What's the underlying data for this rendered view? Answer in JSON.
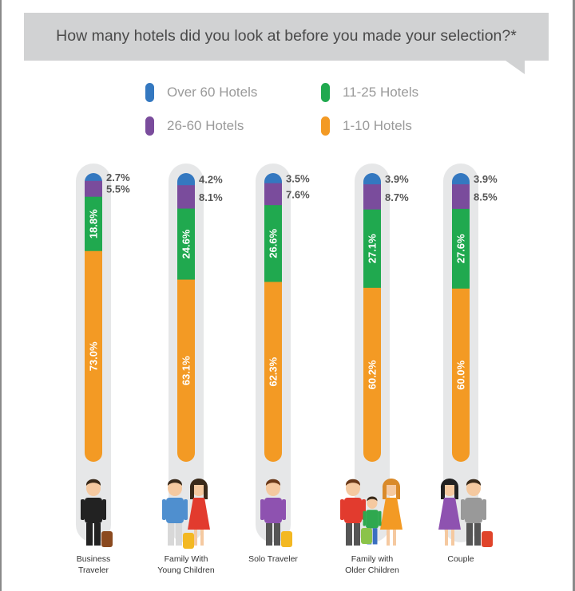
{
  "chart_data": {
    "type": "bar",
    "stacked": true,
    "orientation": "vertical",
    "title": "How many hotels did you look at before you made your selection?*",
    "categories": [
      "Business\nTraveler",
      "Family With\nYoung Children",
      "Solo Traveler",
      "Family with\nOlder Children",
      "Couple"
    ],
    "series": [
      {
        "name": "Over 60 Hotels",
        "color": "#3478c0",
        "values": [
          2.7,
          4.2,
          3.5,
          3.9,
          3.9
        ],
        "labels": [
          "2.7%",
          "4.2%",
          "3.5%",
          "3.9%",
          "3.9%"
        ]
      },
      {
        "name": "26-60 Hotels",
        "color": "#7a4c9c",
        "values": [
          5.5,
          8.1,
          7.6,
          8.7,
          8.5
        ],
        "labels": [
          "5.5%",
          "8.1%",
          "7.6%",
          "8.7%",
          "8.5%"
        ]
      },
      {
        "name": "11-25 Hotels",
        "color": "#20a94f",
        "values": [
          18.8,
          24.6,
          26.6,
          27.1,
          27.6
        ],
        "labels": [
          "18.8%",
          "24.6%",
          "26.6%",
          "27.1%",
          "27.6%"
        ]
      },
      {
        "name": "1-10 Hotels",
        "color": "#f39a24",
        "values": [
          73.0,
          63.1,
          62.3,
          60.2,
          60.0
        ],
        "labels": [
          "73.0%",
          "63.1%",
          "62.3%",
          "60.2%",
          "60.0%"
        ]
      }
    ],
    "legend_position": "top",
    "grid": false
  },
  "colors": {
    "header_bg": "#d1d2d3",
    "track": "#e6e7e8",
    "label_dark": "#555555",
    "label_light": "#ffffff"
  },
  "icons": [
    "business-traveler-icon",
    "family-young-children-icon",
    "solo-traveler-icon",
    "family-older-children-icon",
    "couple-icon"
  ]
}
